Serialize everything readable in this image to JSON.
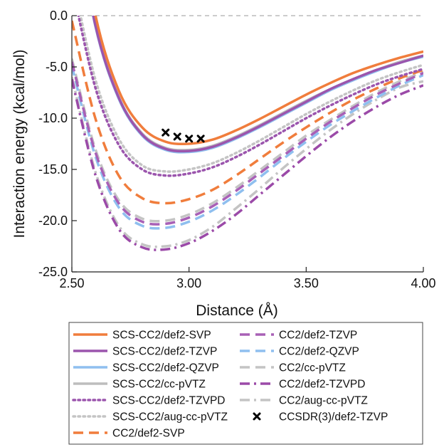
{
  "chart_data": {
    "type": "line",
    "title": "",
    "xlabel": "Distance (Å)",
    "ylabel": "Interaction energy (kcal/mol)",
    "xlim": [
      2.5,
      4.0
    ],
    "ylim": [
      -25.0,
      0.0
    ],
    "x_ticks": [
      "2.50",
      "3.00",
      "3.50",
      "4.00"
    ],
    "y_ticks": [
      "0.0",
      "-5.0",
      "-10.0",
      "-15.0",
      "-20.0",
      "-25.0"
    ],
    "grid": false,
    "zero_reference_line": true,
    "legend_position": "bottom",
    "series": [
      {
        "name": "SCS-CC2/def2-SVP",
        "style": "solid",
        "color": "#f07d3c",
        "x": [
          2.5,
          2.6,
          2.7,
          2.8,
          2.9,
          3.0,
          3.1,
          3.2,
          3.3,
          3.4,
          3.5,
          3.6,
          3.7,
          3.8,
          3.9,
          4.0
        ],
        "y": [
          13.5,
          0.1,
          -7.3,
          -10.9,
          -12.3,
          -12.5,
          -12.1,
          -11.2,
          -10.1,
          -8.9,
          -7.7,
          -6.6,
          -5.6,
          -4.8,
          -4.1,
          -3.5
        ]
      },
      {
        "name": "SCS-CC2/def2-TZVP",
        "style": "solid",
        "color": "#9b55ad",
        "x": [
          2.5,
          2.6,
          2.7,
          2.8,
          2.9,
          3.0,
          3.1,
          3.2,
          3.3,
          3.4,
          3.5,
          3.6,
          3.7,
          3.8,
          3.9,
          4.0
        ],
        "y": [
          12.0,
          -0.9,
          -8.0,
          -11.6,
          -13.0,
          -13.2,
          -12.8,
          -11.9,
          -10.8,
          -9.6,
          -8.4,
          -7.2,
          -6.2,
          -5.3,
          -4.6,
          -3.9
        ]
      },
      {
        "name": "SCS-CC2/def2-QZVP",
        "style": "solid",
        "color": "#8fbfef",
        "x": [
          2.5,
          2.6,
          2.7,
          2.8,
          2.9,
          3.0,
          3.1,
          3.2,
          3.3,
          3.4,
          3.5,
          3.6,
          3.7,
          3.8,
          3.9,
          4.0
        ],
        "y": [
          11.8,
          -1.0,
          -8.1,
          -11.7,
          -13.1,
          -13.3,
          -12.9,
          -12.0,
          -10.9,
          -9.7,
          -8.5,
          -7.3,
          -6.3,
          -5.4,
          -4.6,
          -4.0
        ]
      },
      {
        "name": "SCS-CC2/cc-pVTZ",
        "style": "solid",
        "color": "#bdbdbd",
        "x": [
          2.5,
          2.6,
          2.7,
          2.8,
          2.9,
          3.0,
          3.1,
          3.2,
          3.3,
          3.4,
          3.5,
          3.6,
          3.7,
          3.8,
          3.9,
          4.0
        ],
        "y": [
          12.3,
          -0.7,
          -7.9,
          -11.5,
          -12.9,
          -13.1,
          -12.7,
          -11.8,
          -10.7,
          -9.5,
          -8.3,
          -7.2,
          -6.2,
          -5.3,
          -4.5,
          -3.9
        ]
      },
      {
        "name": "SCS-CC2/def2-TZVPD",
        "style": "dotted",
        "color": "#9b55ad",
        "x": [
          2.5,
          2.6,
          2.7,
          2.8,
          2.9,
          3.0,
          3.1,
          3.2,
          3.3,
          3.4,
          3.5,
          3.6,
          3.7,
          3.8,
          3.9,
          4.0
        ],
        "y": [
          3.0,
          -7.0,
          -12.6,
          -15.0,
          -15.6,
          -15.4,
          -14.8,
          -13.8,
          -12.6,
          -11.3,
          -10.0,
          -8.8,
          -7.7,
          -6.7,
          -5.9,
          -5.2
        ]
      },
      {
        "name": "SCS-CC2/aug-cc-pVTZ",
        "style": "dotted",
        "color": "#c4c4c4",
        "x": [
          2.5,
          2.6,
          2.7,
          2.8,
          2.9,
          3.0,
          3.1,
          3.2,
          3.3,
          3.4,
          3.5,
          3.6,
          3.7,
          3.8,
          3.9,
          4.0
        ],
        "y": [
          4.0,
          -6.2,
          -12.0,
          -14.6,
          -15.2,
          -15.0,
          -14.4,
          -13.4,
          -12.2,
          -10.9,
          -9.6,
          -8.4,
          -7.3,
          -6.3,
          -5.5,
          -4.8
        ]
      },
      {
        "name": "CC2/def2-SVP",
        "style": "dashed",
        "color": "#f07d3c",
        "x": [
          2.5,
          2.6,
          2.7,
          2.8,
          2.9,
          3.0,
          3.1,
          3.2,
          3.3,
          3.4,
          3.5,
          3.6,
          3.7,
          3.8,
          3.9,
          4.0
        ],
        "y": [
          -0.5,
          -10.0,
          -15.6,
          -17.8,
          -18.3,
          -17.9,
          -17.0,
          -15.6,
          -14.0,
          -12.4,
          -10.9,
          -9.5,
          -8.2,
          -7.1,
          -6.1,
          -5.3
        ]
      },
      {
        "name": "CC2/def2-TZVP",
        "style": "dashed",
        "color": "#a860b6",
        "x": [
          2.5,
          2.6,
          2.7,
          2.8,
          2.9,
          3.0,
          3.1,
          3.2,
          3.3,
          3.4,
          3.5,
          3.6,
          3.7,
          3.8,
          3.9,
          4.0
        ],
        "y": [
          -4.5,
          -13.3,
          -18.3,
          -20.1,
          -20.3,
          -19.7,
          -18.6,
          -17.1,
          -15.4,
          -13.7,
          -12.0,
          -10.4,
          -9.0,
          -7.7,
          -6.6,
          -5.6
        ]
      },
      {
        "name": "CC2/def2-QZVP",
        "style": "dashed",
        "color": "#8fbfef",
        "x": [
          2.5,
          2.6,
          2.7,
          2.8,
          2.9,
          3.0,
          3.1,
          3.2,
          3.3,
          3.4,
          3.5,
          3.6,
          3.7,
          3.8,
          3.9,
          4.0
        ],
        "y": [
          -4.9,
          -13.7,
          -18.7,
          -20.5,
          -20.7,
          -20.1,
          -19.0,
          -17.5,
          -15.8,
          -14.0,
          -12.3,
          -10.7,
          -9.3,
          -8.0,
          -6.8,
          -5.8
        ]
      },
      {
        "name": "CC2/cc-pVTZ",
        "style": "dashed",
        "color": "#c4c4c4",
        "x": [
          2.5,
          2.6,
          2.7,
          2.8,
          2.9,
          3.0,
          3.1,
          3.2,
          3.3,
          3.4,
          3.5,
          3.6,
          3.7,
          3.8,
          3.9,
          4.0
        ],
        "y": [
          -4.2,
          -13.0,
          -18.0,
          -19.8,
          -20.0,
          -19.4,
          -18.3,
          -16.8,
          -15.1,
          -13.4,
          -11.7,
          -10.2,
          -8.8,
          -7.5,
          -6.4,
          -5.5
        ]
      },
      {
        "name": "CC2/def2-TZVPD",
        "style": "dashdot",
        "color": "#9b4aa8",
        "x": [
          2.5,
          2.6,
          2.7,
          2.8,
          2.9,
          3.0,
          3.1,
          3.2,
          3.3,
          3.4,
          3.5,
          3.6,
          3.7,
          3.8,
          3.9,
          4.0
        ],
        "y": [
          -6.2,
          -15.5,
          -20.8,
          -22.6,
          -22.8,
          -22.2,
          -21.0,
          -19.4,
          -17.5,
          -15.6,
          -13.7,
          -11.9,
          -10.3,
          -8.9,
          -7.7,
          -6.8
        ]
      },
      {
        "name": "CC2/aug-cc-pVTZ",
        "style": "dashdot",
        "color": "#c4c4c4",
        "x": [
          2.5,
          2.6,
          2.7,
          2.8,
          2.9,
          3.0,
          3.1,
          3.2,
          3.3,
          3.4,
          3.5,
          3.6,
          3.7,
          3.8,
          3.9,
          4.0
        ],
        "y": [
          -6.0,
          -15.2,
          -20.5,
          -22.3,
          -22.5,
          -21.9,
          -20.6,
          -18.8,
          -16.9,
          -14.9,
          -13.0,
          -11.2,
          -9.6,
          -8.2,
          -7.0,
          -6.4
        ]
      },
      {
        "name": "CCSDR(3)/def2-TZVP",
        "style": "markers",
        "marker": "x",
        "color": "#000000",
        "x": [
          2.9,
          2.95,
          3.0,
          3.05
        ],
        "y": [
          -11.4,
          -11.8,
          -12.0,
          -12.0
        ]
      }
    ]
  }
}
